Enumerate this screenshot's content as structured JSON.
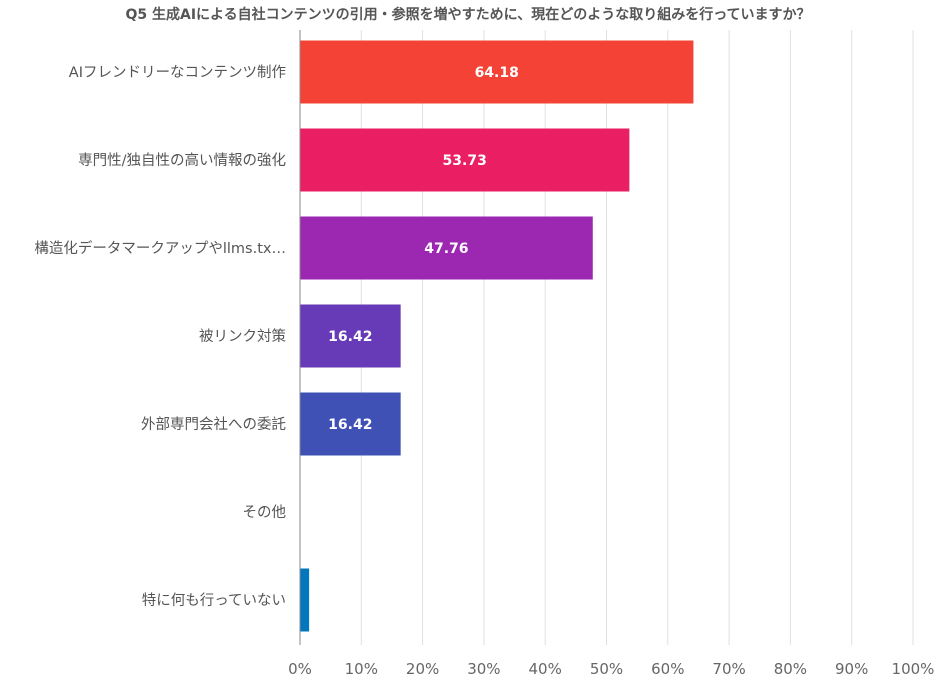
{
  "chart_data": {
    "type": "bar",
    "orientation": "horizontal",
    "title": "Q5 生成AIによる自社コンテンツの引用・参照を増やすために、現在どのような取り組みを行っていますか？",
    "categories": [
      "AIフレンドリーなコンテンツ制作",
      "専門性/独自性の高い情報の強化",
      "構造化データマークアップやllms.tx…",
      "被リンク対策",
      "外部専門会社への委託",
      "その他",
      "特に何も行っていない"
    ],
    "values": [
      64.18,
      53.73,
      47.76,
      16.42,
      16.42,
      0,
      1.49
    ],
    "value_labels": [
      "64.18",
      "53.73",
      "47.76",
      "16.42",
      "16.42",
      "",
      ""
    ],
    "colors": [
      "#f44336",
      "#e91e63",
      "#9c27b0",
      "#673ab7",
      "#3f51b5",
      "#2196f3",
      "#0277bd"
    ],
    "x_ticks": [
      "0%",
      "10%",
      "20%",
      "30%",
      "40%",
      "50%",
      "60%",
      "70%",
      "80%",
      "90%",
      "100%"
    ],
    "xlim": [
      0,
      100
    ],
    "grid": true,
    "xlabel": "",
    "ylabel": ""
  }
}
